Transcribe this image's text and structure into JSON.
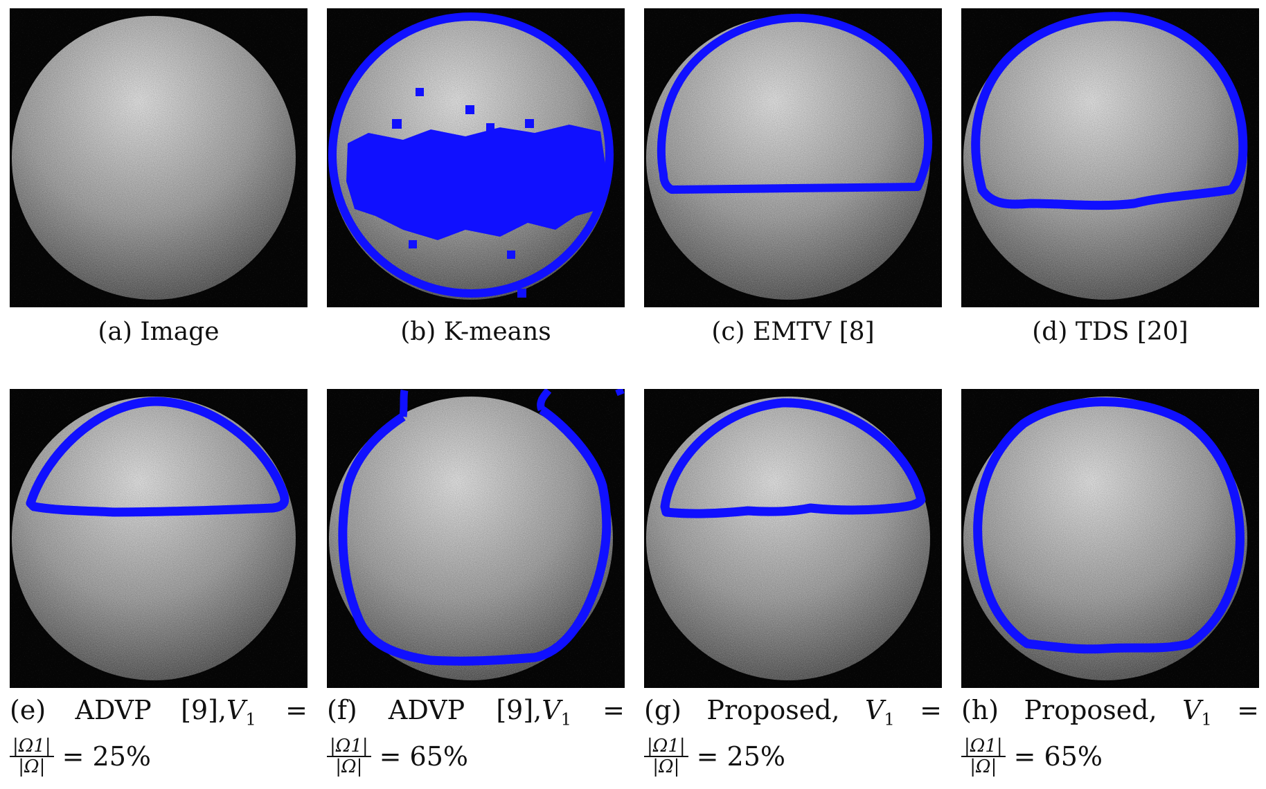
{
  "panels": [
    {
      "id": "a",
      "caption": "(a) Image"
    },
    {
      "id": "b",
      "caption": "(b) K-means"
    },
    {
      "id": "c",
      "caption": "(c) EMTV [8]"
    },
    {
      "id": "d",
      "caption": "(d) TDS [20]"
    },
    {
      "id": "e",
      "label": "(e)",
      "method": "ADVP",
      "ref": "[9],",
      "var": "V",
      "sub": "1",
      "eq": "=",
      "frac_num": "|Ω1|",
      "frac_den": "|Ω|",
      "value": "= 25%"
    },
    {
      "id": "f",
      "label": "(f)",
      "method": "ADVP",
      "ref": "[9],",
      "var": "V",
      "sub": "1",
      "eq": "=",
      "frac_num": "|Ω1|",
      "frac_den": "|Ω|",
      "value": "= 65%"
    },
    {
      "id": "g",
      "label": "(g)",
      "method": "Proposed,",
      "ref": "",
      "var": "V",
      "sub": "1",
      "eq": "=",
      "frac_num": "|Ω1|",
      "frac_den": "|Ω|",
      "value": "= 25%"
    },
    {
      "id": "h",
      "label": "(h)",
      "method": "Proposed,",
      "ref": "",
      "var": "V",
      "sub": "1",
      "eq": "=",
      "frac_num": "|Ω1|",
      "frac_den": "|Ω|",
      "value": "= 65%"
    }
  ],
  "colors": {
    "contour": "#1010ff",
    "background": "#050505",
    "sphere_light": "#d8d8d8",
    "sphere_dark": "#4a4a4a"
  }
}
